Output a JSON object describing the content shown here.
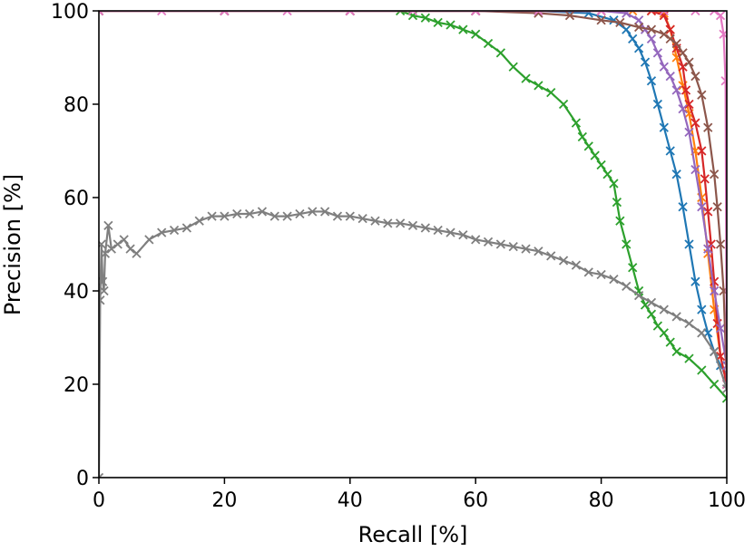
{
  "chart_data": {
    "type": "line",
    "title": "",
    "xlabel": "Recall [%]",
    "ylabel": "Precision [%]",
    "xlim": [
      0,
      100
    ],
    "ylim": [
      0,
      100
    ],
    "xticks": [
      "0",
      "20",
      "40",
      "60",
      "80",
      "100"
    ],
    "yticks": [
      "0",
      "20",
      "40",
      "60",
      "80",
      "100"
    ],
    "grid": false,
    "legend": "none",
    "marker": "x",
    "series": [
      {
        "color": "#1f77b4",
        "x": [
          0,
          20,
          40,
          60,
          70,
          78,
          82,
          84,
          85,
          86,
          87,
          88,
          89,
          90,
          91,
          92,
          93,
          94,
          95,
          96,
          97,
          98,
          99,
          100
        ],
        "y": [
          100,
          100,
          100,
          100,
          100,
          99.5,
          98,
          96,
          94,
          92,
          89,
          85,
          80,
          75,
          70,
          65,
          58,
          50,
          42,
          36,
          31,
          27,
          24,
          22
        ]
      },
      {
        "color": "#ff7f0e",
        "x": [
          0,
          20,
          40,
          60,
          80,
          85,
          88,
          90,
          91,
          92,
          93,
          94,
          95,
          96,
          97,
          98,
          99,
          100
        ],
        "y": [
          100,
          100,
          100,
          100,
          100,
          100,
          100,
          99.5,
          96,
          90,
          84,
          78,
          70,
          60,
          48,
          36,
          26,
          20
        ]
      },
      {
        "color": "#2ca02c",
        "x": [
          48,
          50,
          52,
          54,
          56,
          58,
          60,
          62,
          64,
          66,
          68,
          70,
          72,
          74,
          76,
          77,
          78,
          79,
          80,
          81,
          82,
          82.5,
          83,
          84,
          85,
          86,
          87,
          88,
          89,
          90,
          91,
          92,
          94,
          96,
          98,
          100
        ],
        "y": [
          100,
          99,
          98.5,
          97.5,
          97,
          96,
          95,
          93,
          91,
          88,
          85.5,
          84,
          82.5,
          80,
          76,
          73,
          71,
          69,
          67,
          65,
          63,
          59,
          55,
          50,
          45,
          40,
          37,
          35,
          32.5,
          31,
          29,
          27,
          25.5,
          23,
          20,
          17
        ]
      },
      {
        "color": "#d62728",
        "x": [
          0,
          20,
          40,
          60,
          80,
          88,
          90,
          91,
          92,
          93,
          93.5,
          94,
          95,
          96,
          96.5,
          97,
          97.5,
          98,
          98.5,
          99,
          100
        ],
        "y": [
          100,
          100,
          100,
          100,
          100,
          100,
          99,
          96,
          92,
          88,
          83,
          80,
          76,
          70,
          64,
          57,
          50,
          42,
          33,
          26,
          20
        ]
      },
      {
        "color": "#9467bd",
        "x": [
          0,
          20,
          40,
          60,
          80,
          84,
          86,
          87,
          88,
          89,
          90,
          91,
          92,
          93,
          94,
          95,
          96,
          97,
          98,
          99,
          100
        ],
        "y": [
          100,
          100,
          100,
          100,
          100,
          99.5,
          98,
          96,
          94,
          91,
          88,
          86,
          83,
          79,
          74,
          66,
          58,
          49,
          40,
          32,
          24
        ]
      },
      {
        "color": "#8c564b",
        "x": [
          0,
          20,
          40,
          60,
          70,
          75,
          80,
          83,
          86,
          88,
          90,
          91,
          92,
          93,
          94,
          95,
          96,
          97,
          98,
          98.5,
          99,
          99.5,
          100
        ],
        "y": [
          100,
          100,
          100,
          100,
          99.5,
          99,
          98,
          97.5,
          96.5,
          96,
          95,
          94,
          93,
          91,
          89,
          86,
          82,
          75,
          65,
          58,
          50,
          40,
          20
        ]
      },
      {
        "color": "#e377c2",
        "x": [
          0,
          10,
          20,
          30,
          40,
          50,
          60,
          70,
          80,
          90,
          95,
          98,
          99,
          99.5,
          99.8,
          100
        ],
        "y": [
          100,
          100,
          100,
          100,
          100,
          100,
          100,
          100,
          100,
          100,
          100,
          100,
          99,
          95,
          85,
          20
        ]
      },
      {
        "color": "#7f7f7f",
        "x": [
          0,
          0.2,
          0.4,
          0.6,
          0.8,
          1,
          1.5,
          2,
          3,
          4,
          5,
          6,
          8,
          10,
          12,
          14,
          16,
          18,
          20,
          22,
          24,
          26,
          28,
          30,
          32,
          34,
          36,
          38,
          40,
          42,
          44,
          46,
          48,
          50,
          52,
          54,
          56,
          58,
          60,
          62,
          64,
          66,
          68,
          70,
          72,
          74,
          76,
          78,
          80,
          82,
          84,
          86,
          88,
          90,
          92,
          94,
          96,
          98,
          100
        ],
        "y": [
          0,
          38,
          50,
          42,
          40,
          48,
          54,
          49,
          50,
          51,
          49,
          48,
          51,
          52.5,
          53,
          53.5,
          55,
          56,
          56,
          56.5,
          56.5,
          57,
          56,
          56,
          56.5,
          57,
          57,
          56,
          56,
          55.5,
          55,
          54.5,
          54.5,
          54,
          53.5,
          53,
          52.5,
          52,
          51,
          50.5,
          50,
          49.5,
          49,
          48.5,
          47.5,
          46.5,
          45.5,
          44,
          43.5,
          42.5,
          41,
          39,
          37.5,
          36,
          34.5,
          33,
          31,
          27,
          19
        ]
      }
    ]
  }
}
